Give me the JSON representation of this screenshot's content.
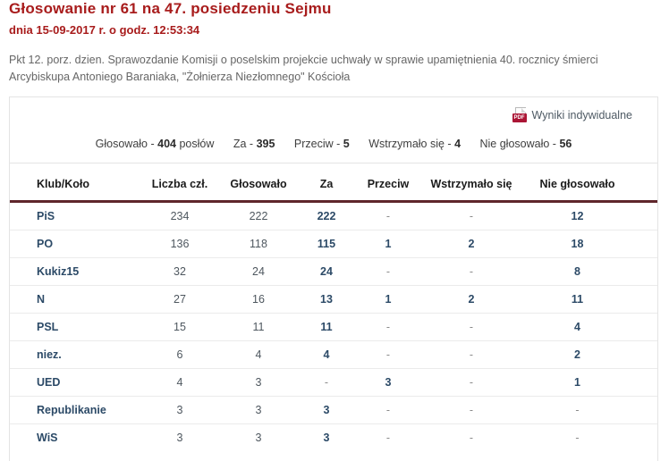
{
  "header": {
    "title": "Głosowanie nr 61 na 47. posiedzeniu Sejmu",
    "date_line": "dnia 15-09-2017 r. o godz. 12:53:34",
    "description": "Pkt 12. porz. dzien. Sprawozdanie Komisji o poselskim projekcie uchwały w sprawie upamiętnienia 40. rocznicy śmierci Arcybiskupa Antoniego Baraniaka, \"Żołnierza Niezłomnego\" Kościoła"
  },
  "results_link": {
    "pdf_badge": "PDF",
    "label": "Wyniki indywidualne"
  },
  "summary": {
    "items": [
      {
        "label": "Głosowało - ",
        "value": "404",
        "suffix": " posłów"
      },
      {
        "label": "Za - ",
        "value": "395",
        "suffix": ""
      },
      {
        "label": "Przeciw - ",
        "value": "5",
        "suffix": ""
      },
      {
        "label": "Wstrzymało się - ",
        "value": "4",
        "suffix": ""
      },
      {
        "label": "Nie głosowało - ",
        "value": "56",
        "suffix": ""
      }
    ]
  },
  "table": {
    "columns": [
      "Klub/Koło",
      "Liczba czł.",
      "Głosowało",
      "Za",
      "Przeciw",
      "Wstrzymało się",
      "Nie głosowało"
    ],
    "rows": [
      {
        "club": "PiS",
        "members": "234",
        "voted": "222",
        "for": "222",
        "against": "-",
        "abstained": "-",
        "not_voted": "12"
      },
      {
        "club": "PO",
        "members": "136",
        "voted": "118",
        "for": "115",
        "against": "1",
        "abstained": "2",
        "not_voted": "18"
      },
      {
        "club": "Kukiz15",
        "members": "32",
        "voted": "24",
        "for": "24",
        "against": "-",
        "abstained": "-",
        "not_voted": "8"
      },
      {
        "club": "N",
        "members": "27",
        "voted": "16",
        "for": "13",
        "against": "1",
        "abstained": "2",
        "not_voted": "11"
      },
      {
        "club": "PSL",
        "members": "15",
        "voted": "11",
        "for": "11",
        "against": "-",
        "abstained": "-",
        "not_voted": "4"
      },
      {
        "club": "niez.",
        "members": "6",
        "voted": "4",
        "for": "4",
        "against": "-",
        "abstained": "-",
        "not_voted": "2"
      },
      {
        "club": "UED",
        "members": "4",
        "voted": "3",
        "for": "-",
        "against": "3",
        "abstained": "-",
        "not_voted": "1"
      },
      {
        "club": "Republikanie",
        "members": "3",
        "voted": "3",
        "for": "3",
        "against": "-",
        "abstained": "-",
        "not_voted": "-"
      },
      {
        "club": "WiS",
        "members": "3",
        "voted": "3",
        "for": "3",
        "against": "-",
        "abstained": "-",
        "not_voted": "-"
      }
    ]
  },
  "colors": {
    "title_red": "#a81c1c",
    "header_rule_maroon": "#5f262b",
    "value_navy": "#2c4a67",
    "pdf_badge_bg": "#ab1535"
  }
}
